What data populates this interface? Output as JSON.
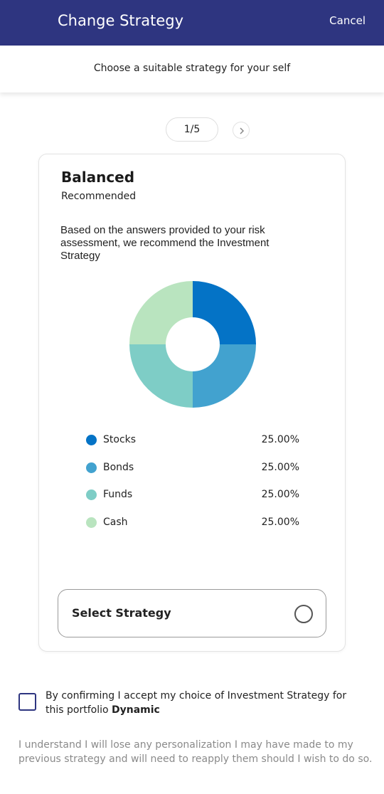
{
  "header": {
    "title": "Change Strategy",
    "cancel_label": "Cancel",
    "background": "#2e3580"
  },
  "subheader": {
    "text": "Choose a suitable strategy for your self"
  },
  "pager": {
    "label": "1/5",
    "next_icon": "chevron-right-icon"
  },
  "strategy": {
    "name": "Balanced",
    "tag": "Recommended",
    "description": "Based on the answers provided to your risk assessment, we recommend the Investment Strategy",
    "select_label": "Select Strategy",
    "allocations": [
      {
        "label": "Stocks",
        "value": "25.00%",
        "percent": 25,
        "color": "#0473c6"
      },
      {
        "label": "Bonds",
        "value": "25.00%",
        "percent": 25,
        "color": "#42a2cf"
      },
      {
        "label": "Funds",
        "value": "25.00%",
        "percent": 25,
        "color": "#7ecdc6"
      },
      {
        "label": "Cash",
        "value": "25.00%",
        "percent": 25,
        "color": "#b9e4bf"
      }
    ]
  },
  "confirm": {
    "text": "By confirming I accept my choice of Investment Strategy for this portfolio ",
    "portfolio": "Dynamic"
  },
  "notice": "I understand I will lose any personalization I may have made to my previous strategy and will need to reapply them should I wish to do so."
}
